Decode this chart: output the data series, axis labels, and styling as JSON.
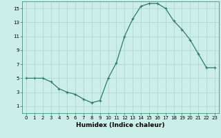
{
  "x": [
    0,
    1,
    2,
    3,
    4,
    5,
    6,
    7,
    8,
    9,
    10,
    11,
    12,
    13,
    14,
    15,
    16,
    17,
    18,
    19,
    20,
    21,
    22,
    23
  ],
  "y": [
    5,
    5,
    5,
    4.5,
    3.5,
    3,
    2.7,
    2,
    1.5,
    1.8,
    5,
    7.2,
    11,
    13.5,
    15.3,
    15.7,
    15.7,
    15,
    13.2,
    12,
    10.5,
    8.5,
    6.5,
    6.5
  ],
  "xlabel": "Humidex (Indice chaleur)",
  "ylim": [
    0,
    16
  ],
  "xlim": [
    -0.5,
    23.5
  ],
  "yticks": [
    1,
    3,
    5,
    7,
    9,
    11,
    13,
    15
  ],
  "xticks": [
    0,
    1,
    2,
    3,
    4,
    5,
    6,
    7,
    8,
    9,
    10,
    11,
    12,
    13,
    14,
    15,
    16,
    17,
    18,
    19,
    20,
    21,
    22,
    23
  ],
  "line_color": "#2a7a6a",
  "marker": "+",
  "marker_size": 3,
  "marker_linewidth": 0.8,
  "linewidth": 0.9,
  "bg_color": "#cceee8",
  "grid_color": "#b0d8d0",
  "tick_fontsize": 5,
  "xlabel_fontsize": 6.5,
  "xlabel_fontweight": "bold"
}
